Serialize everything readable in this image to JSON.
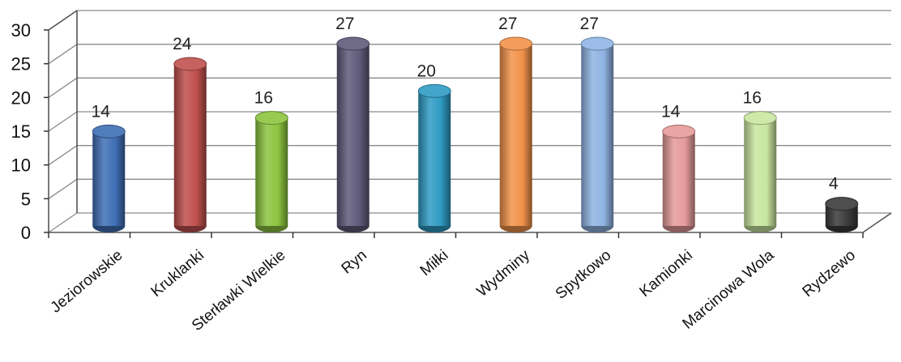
{
  "chart_data": {
    "type": "bar",
    "style": "3d-cylinder",
    "title": "",
    "xlabel": "",
    "ylabel": "",
    "categories": [
      "Jeziorowskie",
      "Kruklanki",
      "Sterławki Wielkie",
      "Ryn",
      "Miłki",
      "Wydminy",
      "Spytkowo",
      "Kamionki",
      "Marcinowa Wola",
      "Rydzewo"
    ],
    "values": [
      14,
      24,
      16,
      27,
      20,
      27,
      27,
      14,
      16,
      4
    ],
    "data_labels": [
      "14",
      "24",
      "16",
      "27",
      "20",
      "27",
      "27",
      "14",
      "16",
      "4"
    ],
    "colors": [
      "#3f6fb5",
      "#c0504d",
      "#8cc43f",
      "#5f5a7a",
      "#2f9bc4",
      "#f2924a",
      "#8fb4e3",
      "#e69a9a",
      "#c8e6a0",
      "#3a3a3a"
    ],
    "ylim": [
      0,
      30
    ],
    "yticks": [
      "0",
      "5",
      "10",
      "15",
      "20",
      "25",
      "30"
    ],
    "grid": true,
    "legend": "none"
  }
}
